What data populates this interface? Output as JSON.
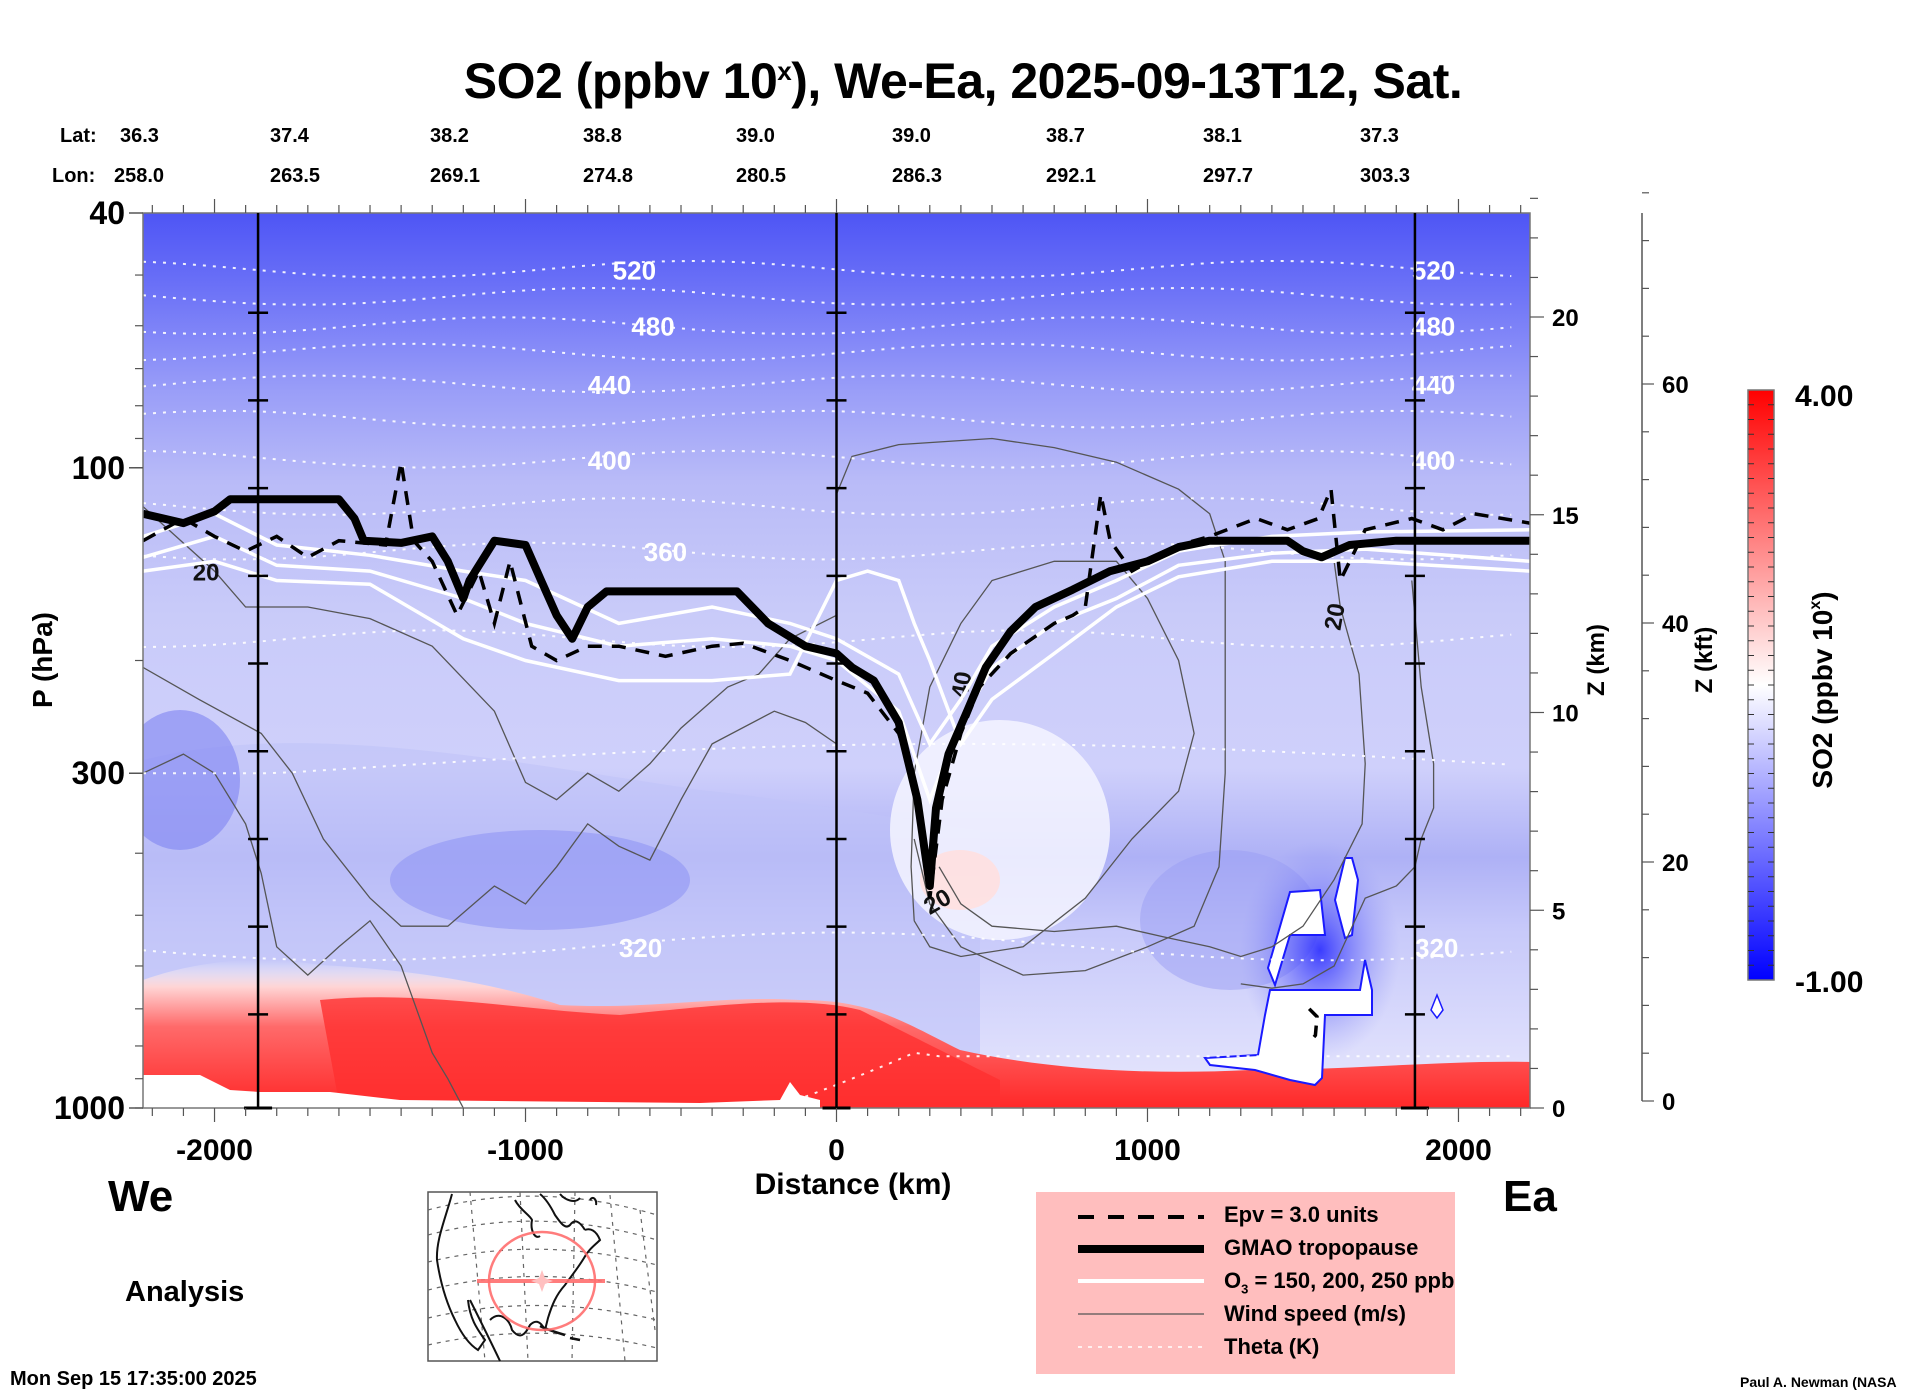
{
  "chart_data": {
    "type": "heatmap",
    "title": "SO2 (ppbv 10",
    "title_sup": "x",
    "title_rest": "), We-Ea, 2025-09-13T12, Sat.",
    "xlabel": "Distance (km)",
    "ylabel": "P (hPa)",
    "y2label": "Z (km)",
    "y3label": "Z (kft)",
    "xlim": [
      -2230,
      2230
    ],
    "ylim": [
      1000,
      40
    ],
    "yscale": "log",
    "x_ticks": [
      -2000,
      -1000,
      0,
      1000,
      2000
    ],
    "x_tick_labels": [
      "-2000",
      "-1000",
      "0",
      "1000",
      "2000"
    ],
    "y_ticks": [
      40,
      100,
      300,
      1000
    ],
    "y_tick_labels": [
      "40",
      "100",
      "300",
      "1000"
    ],
    "zkm_ticks": [
      0,
      5,
      10,
      15,
      20
    ],
    "zkft_ticks": [
      0,
      20,
      40,
      60
    ],
    "vertical_markers_km": [
      -1860,
      0,
      1860
    ],
    "lat_label": "Lat:",
    "lon_label": "Lon:",
    "lat": [
      "36.3",
      "37.4",
      "38.2",
      "38.8",
      "39.0",
      "39.0",
      "38.7",
      "38.1",
      "37.3"
    ],
    "lon": [
      "258.0",
      "263.5",
      "269.1",
      "274.8",
      "280.5",
      "286.3",
      "292.1",
      "297.7",
      "303.3"
    ],
    "latlon_distance_km": [
      -2230,
      -1740,
      -1240,
      -730,
      -230,
      270,
      770,
      1270,
      1770
    ],
    "colorbar": {
      "label": "SO2 (ppbv 10",
      "label_sup": "x",
      "label_rest": ")",
      "min": -1.0,
      "max": 4.0,
      "min_label": "-1.00",
      "max_label": "4.00",
      "colors": [
        "#0000ff",
        "#ffffff",
        "#ff0000"
      ]
    },
    "theta_levels": [
      {
        "label": "520",
        "p": 49
      },
      {
        "label": "480",
        "p": 60
      },
      {
        "label": "440",
        "p": 74
      },
      {
        "label": "400",
        "p": 97
      },
      {
        "label": "360",
        "p": 135
      },
      {
        "label": "320",
        "p": 560
      }
    ],
    "theta_lines_p": [
      49,
      54,
      60,
      66,
      74,
      84,
      97,
      115,
      135,
      185,
      300,
      560,
      800
    ],
    "tropopause": [
      [
        -2230,
        118
      ],
      [
        -2100,
        122
      ],
      [
        -2000,
        117
      ],
      [
        -1950,
        112
      ],
      [
        -1600,
        112
      ],
      [
        -1550,
        120
      ],
      [
        -1520,
        130
      ],
      [
        -1400,
        131
      ],
      [
        -1300,
        128
      ],
      [
        -1250,
        140
      ],
      [
        -1200,
        160
      ],
      [
        -1180,
        150
      ],
      [
        -1100,
        130
      ],
      [
        -1000,
        132
      ],
      [
        -950,
        150
      ],
      [
        -900,
        170
      ],
      [
        -850,
        185
      ],
      [
        -800,
        165
      ],
      [
        -740,
        156
      ],
      [
        -320,
        156
      ],
      [
        -220,
        175
      ],
      [
        -100,
        190
      ],
      [
        0,
        195
      ],
      [
        50,
        205
      ],
      [
        120,
        215
      ],
      [
        200,
        250
      ],
      [
        260,
        330
      ],
      [
        300,
        450
      ],
      [
        320,
        340
      ],
      [
        360,
        280
      ],
      [
        420,
        240
      ],
      [
        480,
        205
      ],
      [
        560,
        180
      ],
      [
        640,
        165
      ],
      [
        760,
        155
      ],
      [
        880,
        145
      ],
      [
        1000,
        140
      ],
      [
        1100,
        133
      ],
      [
        1200,
        130
      ],
      [
        1450,
        130
      ],
      [
        1500,
        135
      ],
      [
        1560,
        138
      ],
      [
        1650,
        132
      ],
      [
        1800,
        130
      ],
      [
        2230,
        130
      ]
    ],
    "epv_3": [
      [
        -2230,
        130
      ],
      [
        -2100,
        120
      ],
      [
        -2000,
        128
      ],
      [
        -1900,
        135
      ],
      [
        -1800,
        128
      ],
      [
        -1700,
        138
      ],
      [
        -1600,
        130
      ],
      [
        -1450,
        132
      ],
      [
        -1400,
        98
      ],
      [
        -1360,
        130
      ],
      [
        -1300,
        140
      ],
      [
        -1220,
        170
      ],
      [
        -1150,
        145
      ],
      [
        -1100,
        175
      ],
      [
        -1050,
        140
      ],
      [
        -980,
        190
      ],
      [
        -900,
        200
      ],
      [
        -800,
        190
      ],
      [
        -700,
        190
      ],
      [
        -550,
        197
      ],
      [
        -400,
        190
      ],
      [
        -300,
        188
      ],
      [
        -150,
        200
      ],
      [
        0,
        215
      ],
      [
        100,
        225
      ],
      [
        200,
        260
      ],
      [
        260,
        320
      ],
      [
        300,
        470
      ],
      [
        340,
        330
      ],
      [
        400,
        260
      ],
      [
        460,
        220
      ],
      [
        560,
        195
      ],
      [
        700,
        175
      ],
      [
        760,
        170
      ],
      [
        800,
        165
      ],
      [
        850,
        110
      ],
      [
        880,
        130
      ],
      [
        950,
        145
      ],
      [
        1100,
        132
      ],
      [
        1200,
        128
      ],
      [
        1350,
        120
      ],
      [
        1450,
        125
      ],
      [
        1550,
        120
      ],
      [
        1590,
        108
      ],
      [
        1620,
        150
      ],
      [
        1700,
        125
      ],
      [
        1850,
        120
      ],
      [
        1950,
        125
      ],
      [
        2050,
        118
      ],
      [
        2230,
        122
      ]
    ],
    "o3_contours": [
      [
        [
          -2230,
          128
        ],
        [
          -2000,
          118
        ],
        [
          -1800,
          132
        ],
        [
          -1500,
          137
        ],
        [
          -1200,
          145
        ],
        [
          -1000,
          150
        ],
        [
          -700,
          175
        ],
        [
          -400,
          165
        ],
        [
          -150,
          175
        ],
        [
          0,
          185
        ],
        [
          200,
          210
        ],
        [
          300,
          270
        ],
        [
          400,
          230
        ],
        [
          500,
          190
        ],
        [
          700,
          165
        ],
        [
          900,
          150
        ],
        [
          1100,
          135
        ],
        [
          1400,
          128
        ],
        [
          1700,
          126
        ],
        [
          2230,
          125
        ]
      ],
      [
        [
          -2230,
          138
        ],
        [
          -2000,
          128
        ],
        [
          -1800,
          142
        ],
        [
          -1500,
          145
        ],
        [
          -1200,
          160
        ],
        [
          -1000,
          175
        ],
        [
          -700,
          190
        ],
        [
          -400,
          185
        ],
        [
          -150,
          190
        ],
        [
          0,
          200
        ],
        [
          200,
          240
        ],
        [
          300,
          330
        ],
        [
          400,
          250
        ],
        [
          500,
          205
        ],
        [
          700,
          175
        ],
        [
          900,
          160
        ],
        [
          1100,
          142
        ],
        [
          1400,
          136
        ],
        [
          1700,
          134
        ],
        [
          2230,
          140
        ]
      ],
      [
        [
          -2230,
          145
        ],
        [
          -2000,
          140
        ],
        [
          -1800,
          150
        ],
        [
          -1500,
          152
        ],
        [
          -1200,
          185
        ],
        [
          -1000,
          200
        ],
        [
          -700,
          215
        ],
        [
          -400,
          215
        ],
        [
          -150,
          210
        ],
        [
          0,
          150
        ],
        [
          100,
          145
        ],
        [
          200,
          150
        ],
        [
          250,
          175
        ],
        [
          300,
          200
        ],
        [
          400,
          270
        ],
        [
          500,
          230
        ],
        [
          700,
          195
        ],
        [
          900,
          165
        ],
        [
          1100,
          148
        ],
        [
          1400,
          140
        ],
        [
          1700,
          140
        ],
        [
          2230,
          145
        ]
      ]
    ],
    "wind_speed_labels": [
      "20",
      "20",
      "20",
      "40"
    ],
    "wind_contours": [
      [
        [
          -2230,
          115
        ],
        [
          -2000,
          145
        ],
        [
          -1900,
          165
        ],
        [
          -1700,
          165
        ],
        [
          -1500,
          172
        ],
        [
          -1300,
          190
        ],
        [
          -1100,
          240
        ],
        [
          -1000,
          310
        ],
        [
          -900,
          330
        ],
        [
          -800,
          300
        ],
        [
          -700,
          320
        ],
        [
          -600,
          290
        ],
        [
          -500,
          255
        ],
        [
          -350,
          220
        ],
        [
          -250,
          210
        ],
        [
          -150,
          185
        ],
        [
          0,
          170
        ]
      ],
      [
        [
          -2230,
          205
        ],
        [
          -2050,
          230
        ],
        [
          -1850,
          260
        ],
        [
          -1750,
          300
        ],
        [
          -1650,
          380
        ],
        [
          -1500,
          470
        ],
        [
          -1400,
          520
        ],
        [
          -1250,
          520
        ],
        [
          -1100,
          450
        ],
        [
          -1000,
          480
        ],
        [
          -900,
          420
        ],
        [
          -800,
          360
        ],
        [
          -700,
          390
        ],
        [
          -600,
          410
        ],
        [
          -500,
          330
        ],
        [
          -400,
          270
        ],
        [
          -200,
          240
        ],
        [
          -100,
          250
        ],
        [
          0,
          270
        ]
      ],
      [
        [
          -2230,
          300
        ],
        [
          -2100,
          280
        ],
        [
          -2000,
          300
        ],
        [
          -1900,
          360
        ],
        [
          -1850,
          430
        ],
        [
          -1800,
          560
        ],
        [
          -1700,
          620
        ],
        [
          -1600,
          560
        ],
        [
          -1500,
          510
        ],
        [
          -1400,
          600
        ],
        [
          -1300,
          820
        ],
        [
          -1250,
          900
        ],
        [
          -1200,
          1000
        ]
      ],
      [
        [
          0,
          110
        ],
        [
          50,
          96
        ],
        [
          200,
          92
        ],
        [
          500,
          90
        ],
        [
          700,
          93
        ],
        [
          900,
          98
        ],
        [
          1100,
          108
        ],
        [
          1200,
          118
        ],
        [
          1250,
          140
        ],
        [
          1250,
          300
        ],
        [
          1230,
          420
        ],
        [
          1150,
          520
        ],
        [
          1000,
          560
        ],
        [
          800,
          610
        ],
        [
          600,
          620
        ],
        [
          400,
          560
        ],
        [
          300,
          480
        ],
        [
          250,
          380
        ]
      ],
      [
        [
          250,
          510
        ],
        [
          300,
          560
        ],
        [
          400,
          580
        ],
        [
          600,
          560
        ],
        [
          800,
          470
        ],
        [
          950,
          380
        ],
        [
          1100,
          320
        ],
        [
          1150,
          260
        ],
        [
          1100,
          200
        ],
        [
          1000,
          160
        ],
        [
          900,
          140
        ],
        [
          700,
          140
        ],
        [
          500,
          150
        ],
        [
          400,
          175
        ],
        [
          300,
          220
        ],
        [
          250,
          300
        ],
        [
          240,
          420
        ],
        [
          250,
          510
        ]
      ],
      [
        [
          1600,
          140
        ],
        [
          1620,
          165
        ],
        [
          1680,
          210
        ],
        [
          1700,
          290
        ],
        [
          1690,
          360
        ],
        [
          1600,
          440
        ],
        [
          1500,
          520
        ],
        [
          1400,
          560
        ],
        [
          1300,
          580
        ],
        [
          1200,
          560
        ],
        [
          1050,
          540
        ],
        [
          900,
          520
        ],
        [
          700,
          530
        ],
        [
          500,
          520
        ],
        [
          400,
          480
        ],
        [
          330,
          420
        ]
      ],
      [
        [
          1850,
          150
        ],
        [
          1880,
          220
        ],
        [
          1920,
          290
        ],
        [
          1920,
          340
        ],
        [
          1880,
          380
        ],
        [
          1860,
          420
        ],
        [
          1800,
          450
        ],
        [
          1700,
          470
        ],
        [
          1600,
          600
        ],
        [
          1500,
          640
        ],
        [
          1400,
          650
        ],
        [
          1300,
          640
        ]
      ]
    ]
  },
  "labels": {
    "west": "We",
    "east": "Ea",
    "analysis": "Analysis",
    "timestamp": "Mon Sep 15 17:35:00 2025",
    "credit": "Paul A. Newman (NASA"
  },
  "legend": {
    "items": [
      {
        "label": "Epv = 3.0 units",
        "style": "dashed"
      },
      {
        "label": "GMAO tropopause",
        "style": "thick"
      },
      {
        "label_pre": "O",
        "label_sub": "3",
        "label_post": " = 150, 200, 250 ppb",
        "style": "white"
      },
      {
        "label": "Wind speed (m/s)",
        "style": "thin"
      },
      {
        "label": "Theta (K)",
        "style": "dotted"
      }
    ],
    "background": "#ffbebe"
  },
  "map_inset": {
    "region": "North America",
    "marker_color": "#ff6e6e"
  }
}
